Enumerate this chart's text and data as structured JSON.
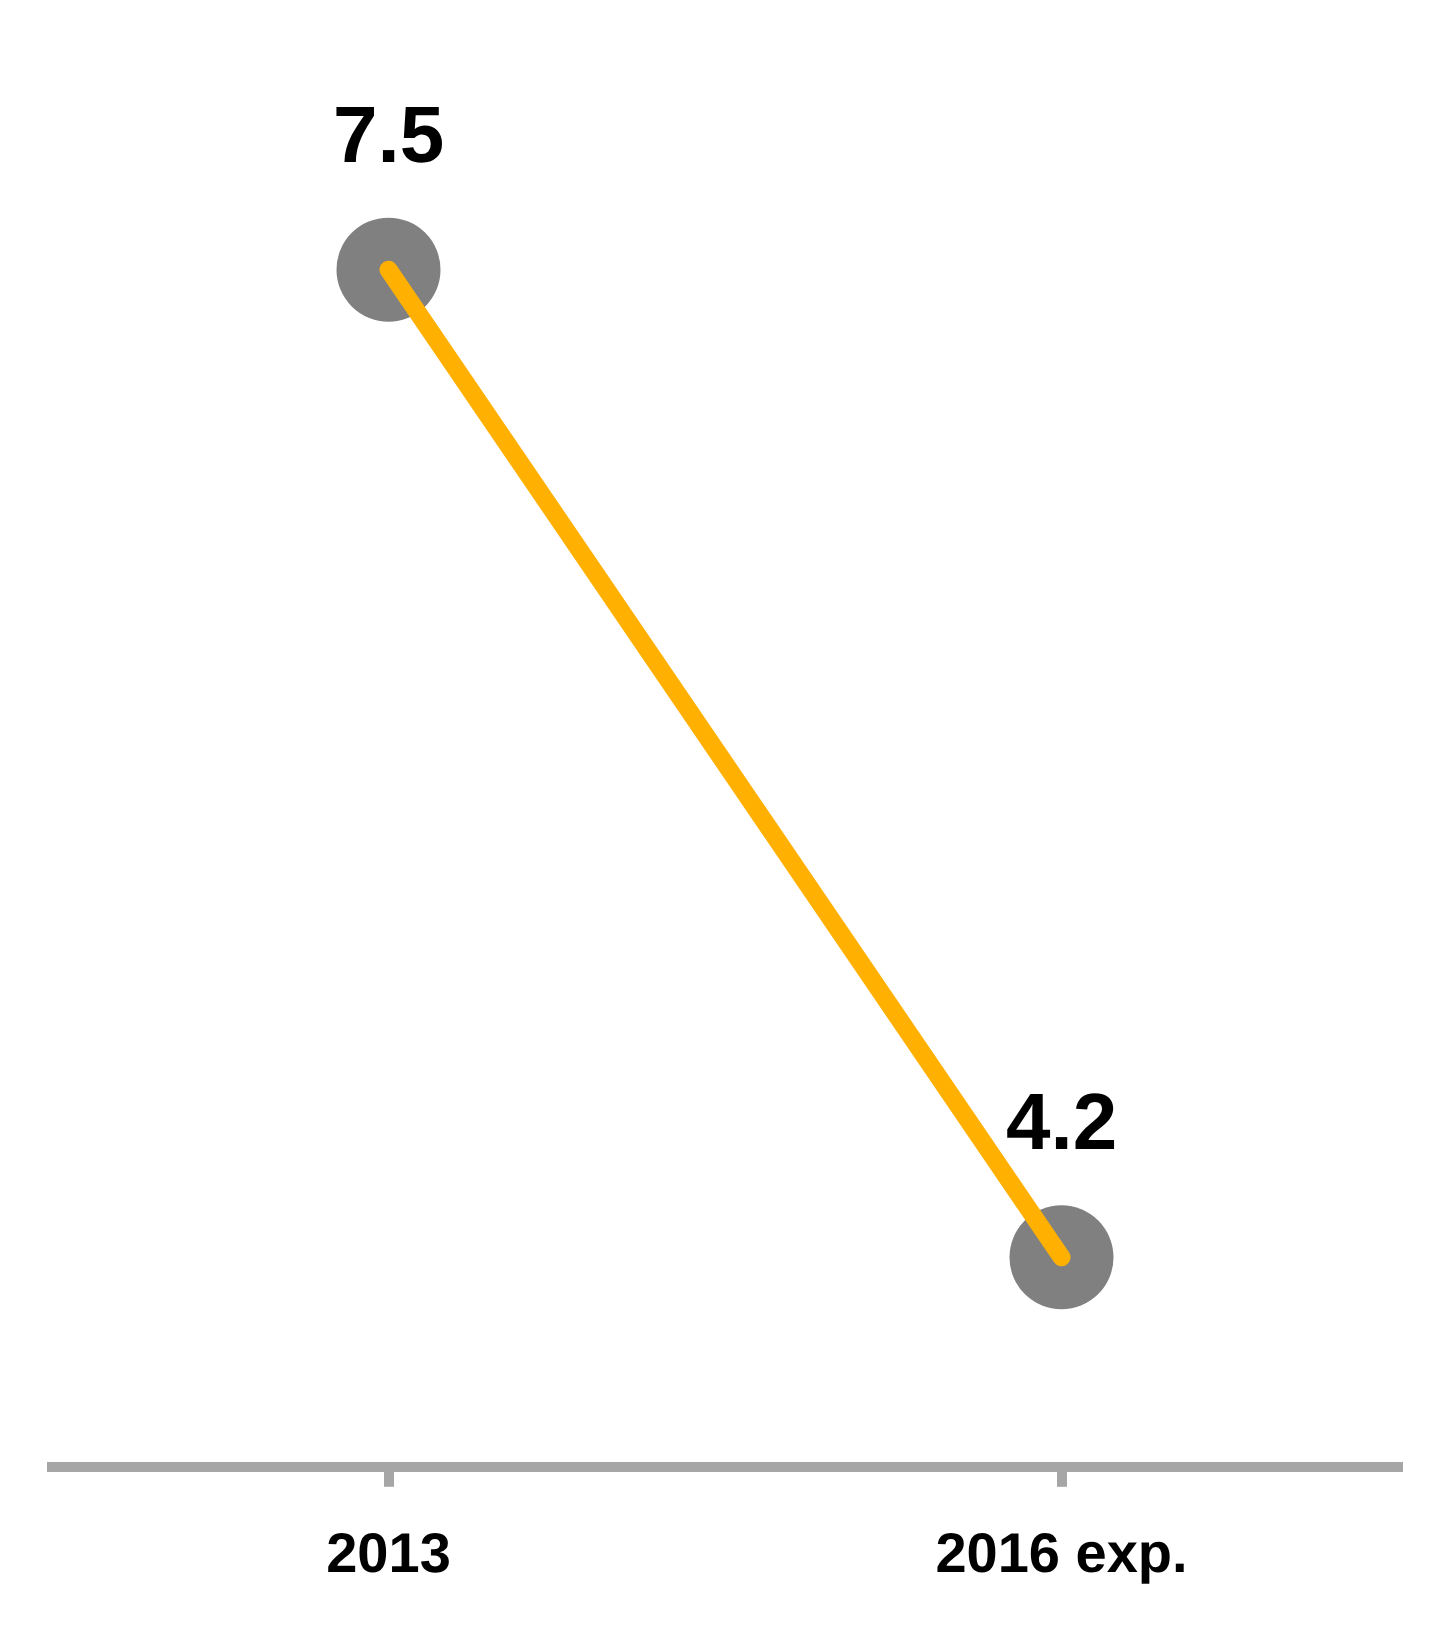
{
  "chart_data": {
    "type": "line",
    "categories": [
      "2013",
      "2016 exp."
    ],
    "series": [
      {
        "type": "scatter",
        "color": "#808080",
        "values": [
          7.5,
          4.2
        ],
        "value_labels": [
          "7.5",
          "4.2"
        ]
      },
      {
        "color": "#ffb000",
        "marker": "none",
        "values": [
          7.5,
          4.2
        ]
      }
    ],
    "marker": "circle",
    "line_style": "solid",
    "grid": false,
    "legend": false,
    "tick_labels": "x"
  }
}
